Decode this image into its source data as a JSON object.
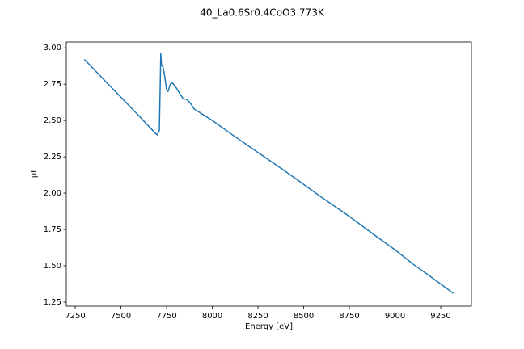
{
  "chart_data": {
    "type": "line",
    "title": "40_La0.6Sr0.4CoO3 773K",
    "xlabel": "Energy [eV]",
    "ylabel": "μt",
    "color": "#1f77b4",
    "x": [
      7300,
      7400,
      7500,
      7600,
      7690,
      7700,
      7705,
      7710,
      7715,
      7718,
      7722,
      7730,
      7740,
      7750,
      7758,
      7770,
      7780,
      7800,
      7820,
      7840,
      7860,
      7880,
      7900,
      7950,
      8000,
      8100,
      8250,
      8400,
      8500,
      8600,
      8750,
      8900,
      9000,
      9100,
      9200,
      9320
    ],
    "values": [
      2.92,
      2.79,
      2.66,
      2.53,
      2.41,
      2.4,
      2.42,
      2.43,
      2.75,
      2.96,
      2.88,
      2.87,
      2.8,
      2.71,
      2.7,
      2.75,
      2.76,
      2.73,
      2.69,
      2.65,
      2.645,
      2.62,
      2.58,
      2.54,
      2.5,
      2.41,
      2.28,
      2.15,
      2.06,
      1.97,
      1.84,
      1.7,
      1.61,
      1.51,
      1.42,
      1.31
    ],
    "xlim": [
      7201,
      9418
    ],
    "ylim": [
      1.222,
      3.04
    ],
    "xticks": [
      7250,
      7500,
      7750,
      8000,
      8250,
      8500,
      8750,
      9000,
      9250
    ],
    "yticks": [
      1.25,
      {
        "value": 1.5,
        "label": "1.50"
      },
      1.75,
      {
        "value": 2,
        "label": "2.00"
      },
      2.25,
      {
        "value": 2.5,
        "label": "2.50"
      },
      2.75,
      {
        "value": 3,
        "label": "3.00"
      }
    ]
  }
}
